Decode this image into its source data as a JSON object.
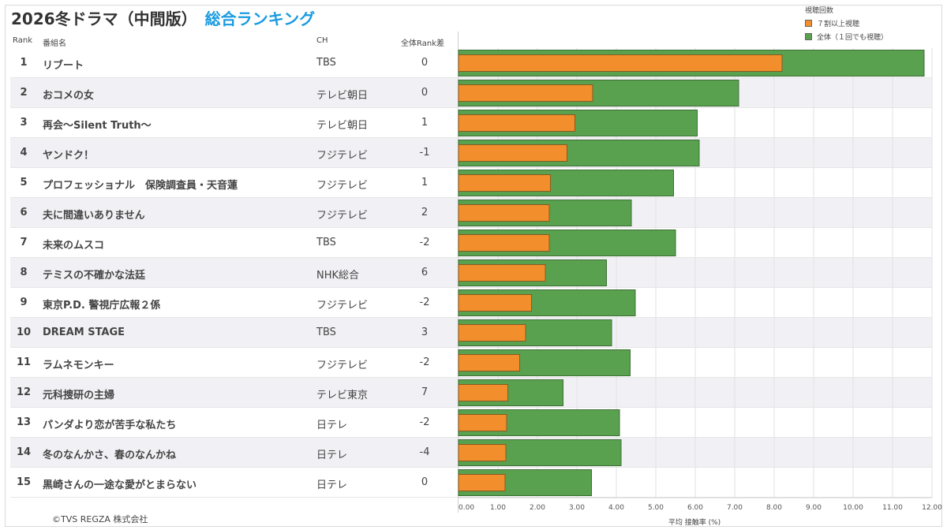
{
  "header": {
    "title_main": "2026冬ドラマ（中間版）",
    "title_sub": "総合ランキング",
    "col_rank": "Rank",
    "col_name": "番組名",
    "col_ch": "CH",
    "col_diff": "全体Rank差"
  },
  "legend": {
    "title": "視聴回数",
    "items": [
      {
        "label": "７割以上視聴",
        "color": "#f28e2b"
      },
      {
        "label": "全体（１回でも視聴）",
        "color": "#59a14f"
      }
    ]
  },
  "footer": "©TVS REGZA 株式会社",
  "colors": {
    "orange": "#f28e2b",
    "green": "#59a14f",
    "title_sub": "#1a9be0"
  },
  "rows": [
    {
      "rank": "1",
      "name": "リブート",
      "ch": "TBS",
      "diff": "0"
    },
    {
      "rank": "2",
      "name": "おコメの女",
      "ch": "テレビ朝日",
      "diff": "0"
    },
    {
      "rank": "3",
      "name": "再会〜Silent Truth〜",
      "ch": "テレビ朝日",
      "diff": "1"
    },
    {
      "rank": "4",
      "name": "ヤンドク！",
      "ch": "フジテレビ",
      "diff": "-1"
    },
    {
      "rank": "5",
      "name": "プロフェッショナル　保険調査員・天音蓮",
      "ch": "フジテレビ",
      "diff": "1"
    },
    {
      "rank": "6",
      "name": "夫に間違いありません",
      "ch": "フジテレビ",
      "diff": "2"
    },
    {
      "rank": "7",
      "name": "未来のムスコ",
      "ch": "TBS",
      "diff": "-2"
    },
    {
      "rank": "8",
      "name": "テミスの不確かな法廷",
      "ch": "NHK総合",
      "diff": "6"
    },
    {
      "rank": "9",
      "name": "東京P.D. 警視庁広報２係",
      "ch": "フジテレビ",
      "diff": "-2"
    },
    {
      "rank": "10",
      "name": "DREAM STAGE",
      "ch": "TBS",
      "diff": "3"
    },
    {
      "rank": "11",
      "name": "ラムネモンキー",
      "ch": "フジテレビ",
      "diff": "-2"
    },
    {
      "rank": "12",
      "name": "元科捜研の主婦",
      "ch": "テレビ東京",
      "diff": "7"
    },
    {
      "rank": "13",
      "name": "パンダより恋が苦手な私たち",
      "ch": "日テレ",
      "diff": "-2"
    },
    {
      "rank": "14",
      "name": "冬のなんかさ、春のなんかね",
      "ch": "日テレ",
      "diff": "-4"
    },
    {
      "rank": "15",
      "name": "黒崎さんの一途な愛がとまらない",
      "ch": "日テレ",
      "diff": "0"
    }
  ],
  "chart_data": {
    "type": "bar",
    "orientation": "horizontal",
    "categories": [
      "リブート",
      "おコメの女",
      "再会〜Silent Truth〜",
      "ヤンドク！",
      "プロフェッショナル　保険調査員・天音蓮",
      "夫に間違いありません",
      "未来のムスコ",
      "テミスの不確かな法廷",
      "東京P.D. 警視庁広報２係",
      "DREAM STAGE",
      "ラムネモンキー",
      "元科捜研の主婦",
      "パンダより恋が苦手な私たち",
      "冬のなんかさ、春のなんかね",
      "黒崎さんの一途な愛がとまらない"
    ],
    "series": [
      {
        "name": "全体（１回でも視聴）",
        "color": "#59a14f",
        "values": [
          11.8,
          7.1,
          6.05,
          6.1,
          5.45,
          4.38,
          5.5,
          3.75,
          4.48,
          3.88,
          4.35,
          2.65,
          4.08,
          4.12,
          3.37
        ]
      },
      {
        "name": "７割以上視聴",
        "color": "#f28e2b",
        "values": [
          8.2,
          3.4,
          2.95,
          2.75,
          2.33,
          2.3,
          2.3,
          2.2,
          1.85,
          1.7,
          1.55,
          1.25,
          1.22,
          1.2,
          1.18
        ]
      }
    ],
    "xlabel": "平均 接触率 (%)",
    "xlim": [
      0,
      12
    ],
    "xticks": [
      "0.00",
      "1.00",
      "2.00",
      "3.00",
      "4.00",
      "5.00",
      "6.00",
      "7.00",
      "8.00",
      "9.00",
      "10.00",
      "11.00",
      "12.00"
    ],
    "grid": true,
    "legend_position": "top-right"
  }
}
